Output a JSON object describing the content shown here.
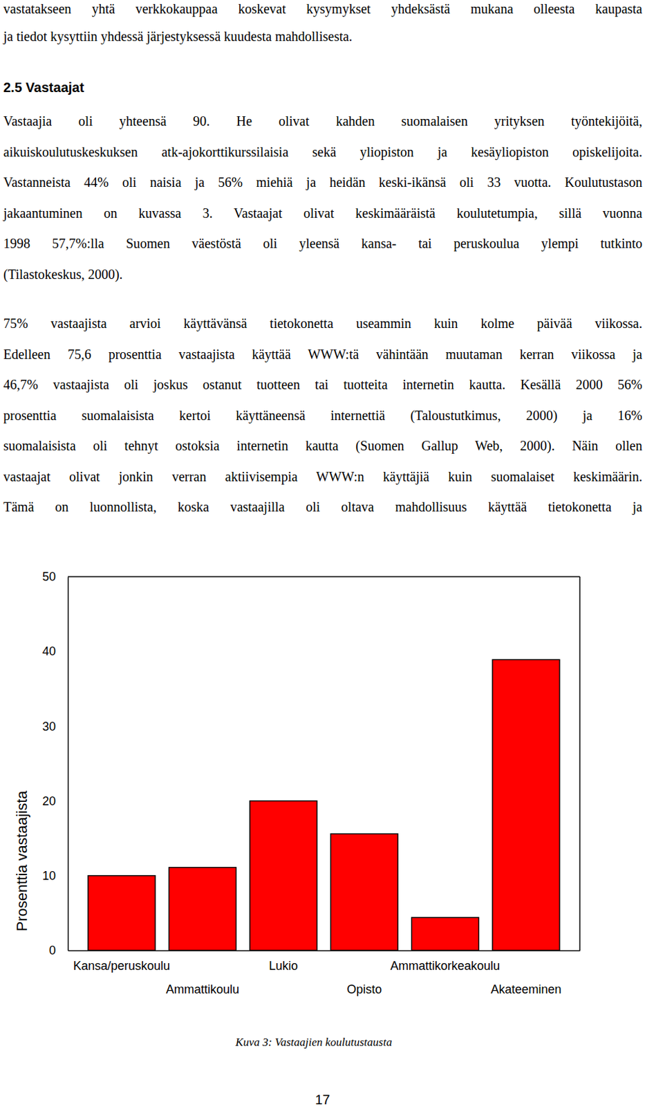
{
  "document": {
    "intro_lines": [
      "vastatakseen yhtä verkkokauppaa koskevat kysymykset yhdeksästä mukana olleesta kaupasta",
      "ja tiedot kysyttiin yhdessä järjestyksessä kuudesta mahdollisesta."
    ],
    "heading": "2.5 Vastaajat",
    "paragraphs": [
      [
        "Vastaajia oli yhteensä 90. He olivat kahden suomalaisen yrityksen työntekijöitä,",
        "aikuiskoulutuskeskuksen atk-ajokorttikurssilaisia sekä yliopiston ja kesäyliopiston opiskelijoita.",
        "Vastanneista 44% oli naisia ja 56% miehiä ja heidän keski-ikänsä oli 33 vuotta. Koulutustason",
        "jakaantuminen on kuvassa 3. Vastaajat olivat keskimääräistä koulutetumpia, sillä vuonna",
        "1998 57,7%:lla Suomen väestöstä oli yleensä kansa- tai peruskoulua ylempi tutkinto",
        "(Tilastokeskus, 2000)."
      ],
      [
        "75% vastaajista arvioi käyttävänsä tietokonetta useammin kuin kolme päivää viikossa.",
        "Edelleen 75,6 prosenttia vastaajista käyttää WWW:tä vähintään muutaman kerran viikossa ja",
        "46,7% vastaajista oli joskus ostanut tuotteen tai tuotteita internetin kautta. Kesällä 2000 56%",
        "prosenttia suomalaisista kertoi käyttäneensä internettiä (Taloustutkimus, 2000) ja 16%",
        "suomalaisista oli tehnyt ostoksia internetin kautta (Suomen Gallup Web, 2000). Näin ollen",
        "vastaajat olivat jonkin verran aktiivisempia WWW:n käyttäjiä kuin suomalaiset keskimäärin.",
        "Tämä on luonnollista, koska vastaajilla oli oltava mahdollisuus käyttää tietokonetta ja"
      ]
    ],
    "caption": "Kuva 3: Vastaajien koulutustausta",
    "page_number": "17"
  },
  "chart_data": {
    "type": "bar",
    "categories": [
      "Kansa/peruskoulu",
      "Ammattikoulu",
      "Lukio",
      "Opisto",
      "Ammattikorkeakoulu",
      "Akateeminen"
    ],
    "values": [
      10,
      11.1,
      20,
      15.6,
      4.4,
      38.9
    ],
    "color": "#ff0000",
    "ylim": [
      0,
      50
    ],
    "yticks": [
      0,
      10,
      20,
      30,
      40,
      50
    ],
    "y_label": "Prosenttia vastaajista",
    "grid": false
  }
}
